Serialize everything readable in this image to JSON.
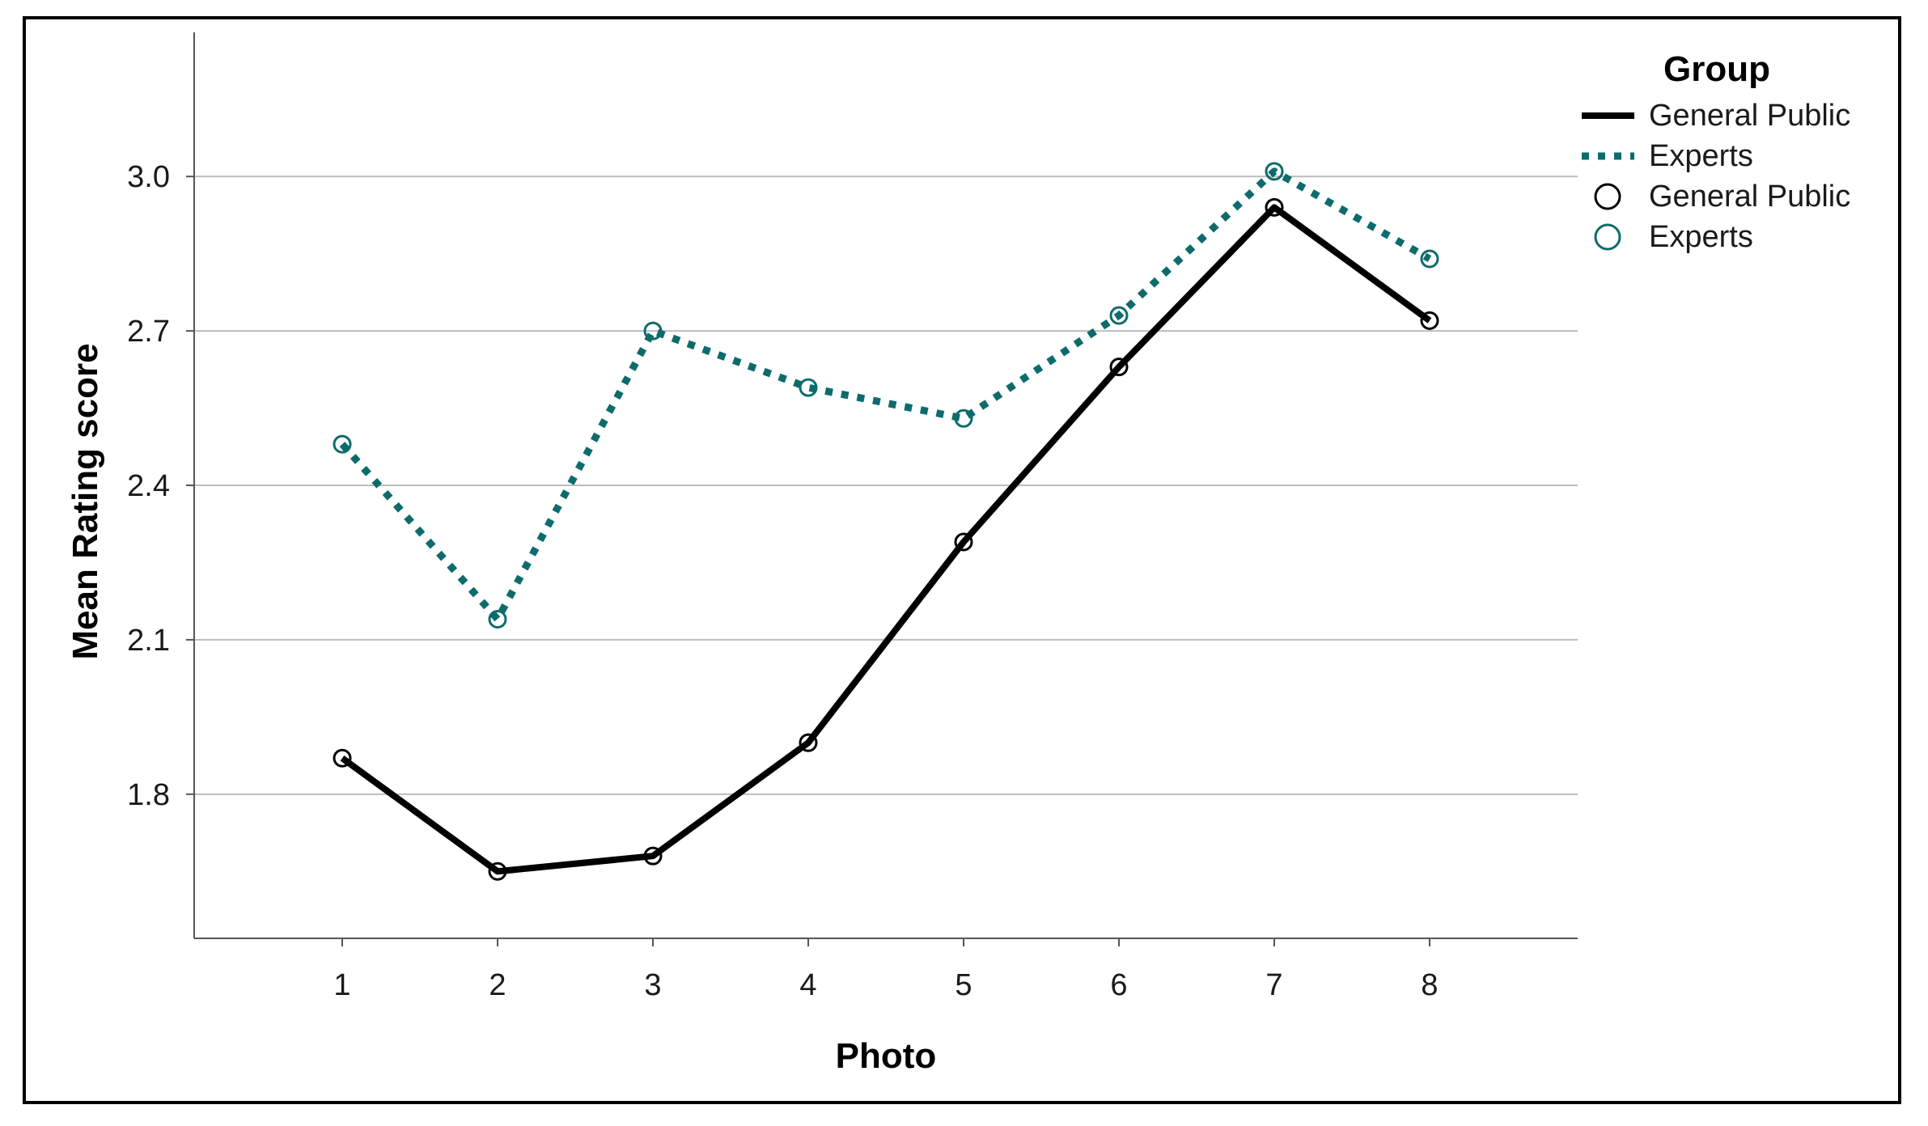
{
  "chart_data": {
    "type": "line",
    "xlabel": "Photo",
    "ylabel": "Mean Rating score",
    "categories": [
      "1",
      "2",
      "3",
      "4",
      "5",
      "6",
      "7",
      "8"
    ],
    "yticks": [
      "1.8",
      "2.1",
      "2.4",
      "2.7",
      "3.0"
    ],
    "ytick_values": [
      1.8,
      2.1,
      2.4,
      2.7,
      3.0
    ],
    "ylim": [
      1.52,
      3.28
    ],
    "grid": true,
    "legend_position": "top-right",
    "legend": {
      "title": "Group",
      "items": [
        {
          "label": "General Public",
          "kind": "line",
          "series": 0
        },
        {
          "label": "Experts",
          "kind": "line",
          "series": 1
        },
        {
          "label": "General Public",
          "kind": "marker",
          "series": 0
        },
        {
          "label": "Experts",
          "kind": "marker",
          "series": 1
        }
      ]
    },
    "series": [
      {
        "name": "General Public",
        "values": [
          1.87,
          1.65,
          1.68,
          1.9,
          2.29,
          2.63,
          2.94,
          2.72
        ],
        "color": "#000000",
        "style": "solid"
      },
      {
        "name": "Experts",
        "values": [
          2.48,
          2.14,
          2.7,
          2.59,
          2.53,
          2.73,
          3.01,
          2.84
        ],
        "color": "#0e6b6b",
        "style": "dotted"
      }
    ]
  }
}
